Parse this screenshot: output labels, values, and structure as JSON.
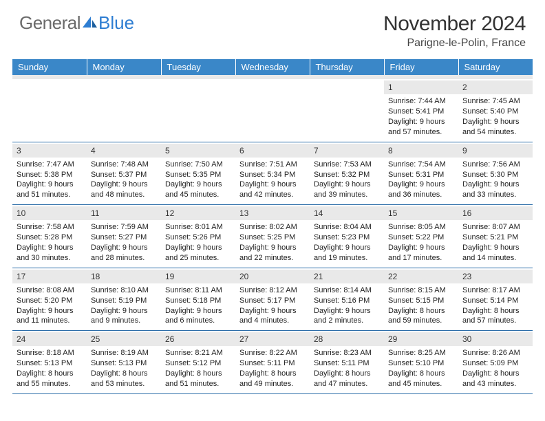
{
  "brand": {
    "text_general": "General",
    "text_blue": "Blue"
  },
  "title": {
    "month": "November 2024",
    "location": "Parigne-le-Polin, France"
  },
  "colors": {
    "header_bg": "#3a87c8",
    "band": "#e9e9e9",
    "rule": "#2a6ca8",
    "logo_blue": "#2d7dd2",
    "logo_gray": "#6a6a6a"
  },
  "weekdays": [
    "Sunday",
    "Monday",
    "Tuesday",
    "Wednesday",
    "Thursday",
    "Friday",
    "Saturday"
  ],
  "weeks": [
    [
      {
        "n": "",
        "sr": "",
        "ss": "",
        "dl": ""
      },
      {
        "n": "",
        "sr": "",
        "ss": "",
        "dl": ""
      },
      {
        "n": "",
        "sr": "",
        "ss": "",
        "dl": ""
      },
      {
        "n": "",
        "sr": "",
        "ss": "",
        "dl": ""
      },
      {
        "n": "",
        "sr": "",
        "ss": "",
        "dl": ""
      },
      {
        "n": "1",
        "sr": "Sunrise: 7:44 AM",
        "ss": "Sunset: 5:41 PM",
        "dl": "Daylight: 9 hours and 57 minutes."
      },
      {
        "n": "2",
        "sr": "Sunrise: 7:45 AM",
        "ss": "Sunset: 5:40 PM",
        "dl": "Daylight: 9 hours and 54 minutes."
      }
    ],
    [
      {
        "n": "3",
        "sr": "Sunrise: 7:47 AM",
        "ss": "Sunset: 5:38 PM",
        "dl": "Daylight: 9 hours and 51 minutes."
      },
      {
        "n": "4",
        "sr": "Sunrise: 7:48 AM",
        "ss": "Sunset: 5:37 PM",
        "dl": "Daylight: 9 hours and 48 minutes."
      },
      {
        "n": "5",
        "sr": "Sunrise: 7:50 AM",
        "ss": "Sunset: 5:35 PM",
        "dl": "Daylight: 9 hours and 45 minutes."
      },
      {
        "n": "6",
        "sr": "Sunrise: 7:51 AM",
        "ss": "Sunset: 5:34 PM",
        "dl": "Daylight: 9 hours and 42 minutes."
      },
      {
        "n": "7",
        "sr": "Sunrise: 7:53 AM",
        "ss": "Sunset: 5:32 PM",
        "dl": "Daylight: 9 hours and 39 minutes."
      },
      {
        "n": "8",
        "sr": "Sunrise: 7:54 AM",
        "ss": "Sunset: 5:31 PM",
        "dl": "Daylight: 9 hours and 36 minutes."
      },
      {
        "n": "9",
        "sr": "Sunrise: 7:56 AM",
        "ss": "Sunset: 5:30 PM",
        "dl": "Daylight: 9 hours and 33 minutes."
      }
    ],
    [
      {
        "n": "10",
        "sr": "Sunrise: 7:58 AM",
        "ss": "Sunset: 5:28 PM",
        "dl": "Daylight: 9 hours and 30 minutes."
      },
      {
        "n": "11",
        "sr": "Sunrise: 7:59 AM",
        "ss": "Sunset: 5:27 PM",
        "dl": "Daylight: 9 hours and 28 minutes."
      },
      {
        "n": "12",
        "sr": "Sunrise: 8:01 AM",
        "ss": "Sunset: 5:26 PM",
        "dl": "Daylight: 9 hours and 25 minutes."
      },
      {
        "n": "13",
        "sr": "Sunrise: 8:02 AM",
        "ss": "Sunset: 5:25 PM",
        "dl": "Daylight: 9 hours and 22 minutes."
      },
      {
        "n": "14",
        "sr": "Sunrise: 8:04 AM",
        "ss": "Sunset: 5:23 PM",
        "dl": "Daylight: 9 hours and 19 minutes."
      },
      {
        "n": "15",
        "sr": "Sunrise: 8:05 AM",
        "ss": "Sunset: 5:22 PM",
        "dl": "Daylight: 9 hours and 17 minutes."
      },
      {
        "n": "16",
        "sr": "Sunrise: 8:07 AM",
        "ss": "Sunset: 5:21 PM",
        "dl": "Daylight: 9 hours and 14 minutes."
      }
    ],
    [
      {
        "n": "17",
        "sr": "Sunrise: 8:08 AM",
        "ss": "Sunset: 5:20 PM",
        "dl": "Daylight: 9 hours and 11 minutes."
      },
      {
        "n": "18",
        "sr": "Sunrise: 8:10 AM",
        "ss": "Sunset: 5:19 PM",
        "dl": "Daylight: 9 hours and 9 minutes."
      },
      {
        "n": "19",
        "sr": "Sunrise: 8:11 AM",
        "ss": "Sunset: 5:18 PM",
        "dl": "Daylight: 9 hours and 6 minutes."
      },
      {
        "n": "20",
        "sr": "Sunrise: 8:12 AM",
        "ss": "Sunset: 5:17 PM",
        "dl": "Daylight: 9 hours and 4 minutes."
      },
      {
        "n": "21",
        "sr": "Sunrise: 8:14 AM",
        "ss": "Sunset: 5:16 PM",
        "dl": "Daylight: 9 hours and 2 minutes."
      },
      {
        "n": "22",
        "sr": "Sunrise: 8:15 AM",
        "ss": "Sunset: 5:15 PM",
        "dl": "Daylight: 8 hours and 59 minutes."
      },
      {
        "n": "23",
        "sr": "Sunrise: 8:17 AM",
        "ss": "Sunset: 5:14 PM",
        "dl": "Daylight: 8 hours and 57 minutes."
      }
    ],
    [
      {
        "n": "24",
        "sr": "Sunrise: 8:18 AM",
        "ss": "Sunset: 5:13 PM",
        "dl": "Daylight: 8 hours and 55 minutes."
      },
      {
        "n": "25",
        "sr": "Sunrise: 8:19 AM",
        "ss": "Sunset: 5:13 PM",
        "dl": "Daylight: 8 hours and 53 minutes."
      },
      {
        "n": "26",
        "sr": "Sunrise: 8:21 AM",
        "ss": "Sunset: 5:12 PM",
        "dl": "Daylight: 8 hours and 51 minutes."
      },
      {
        "n": "27",
        "sr": "Sunrise: 8:22 AM",
        "ss": "Sunset: 5:11 PM",
        "dl": "Daylight: 8 hours and 49 minutes."
      },
      {
        "n": "28",
        "sr": "Sunrise: 8:23 AM",
        "ss": "Sunset: 5:11 PM",
        "dl": "Daylight: 8 hours and 47 minutes."
      },
      {
        "n": "29",
        "sr": "Sunrise: 8:25 AM",
        "ss": "Sunset: 5:10 PM",
        "dl": "Daylight: 8 hours and 45 minutes."
      },
      {
        "n": "30",
        "sr": "Sunrise: 8:26 AM",
        "ss": "Sunset: 5:09 PM",
        "dl": "Daylight: 8 hours and 43 minutes."
      }
    ]
  ]
}
